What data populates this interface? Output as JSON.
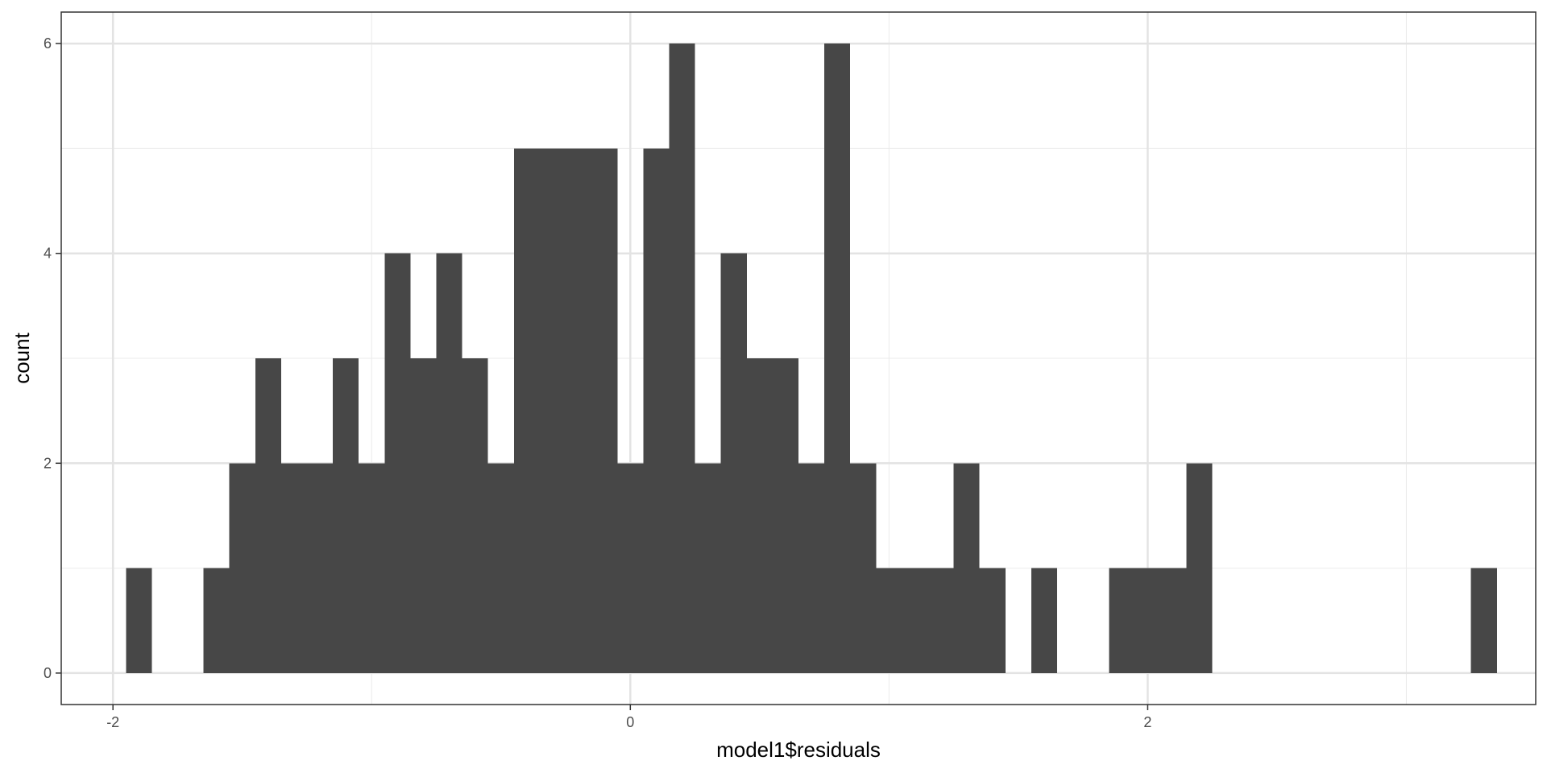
{
  "chart_data": {
    "type": "bar",
    "subtype": "histogram",
    "title": "",
    "xlabel": "model1$residuals",
    "ylabel": "count",
    "xlim": [
      -2.2,
      3.5
    ],
    "ylim": [
      -0.3,
      6.3
    ],
    "x_ticks": [
      -2,
      0,
      2
    ],
    "x_tick_labels": [
      "-2",
      "0",
      "2"
    ],
    "y_ticks": [
      0,
      2,
      4,
      6
    ],
    "y_tick_labels": [
      "0",
      "2",
      "4",
      "6"
    ],
    "grid": true,
    "legend": "none",
    "bar_color": "#474747",
    "bins": [
      {
        "x0": -1.95,
        "x1": -1.85,
        "count": 1
      },
      {
        "x0": -1.65,
        "x1": -1.55,
        "count": 1
      },
      {
        "x0": -1.55,
        "x1": -1.45,
        "count": 2
      },
      {
        "x0": -1.45,
        "x1": -1.35,
        "count": 3
      },
      {
        "x0": -1.35,
        "x1": -1.25,
        "count": 2
      },
      {
        "x0": -1.25,
        "x1": -1.15,
        "count": 2
      },
      {
        "x0": -1.15,
        "x1": -1.05,
        "count": 3
      },
      {
        "x0": -1.05,
        "x1": -0.95,
        "count": 2
      },
      {
        "x0": -0.95,
        "x1": -0.85,
        "count": 4
      },
      {
        "x0": -0.85,
        "x1": -0.75,
        "count": 3
      },
      {
        "x0": -0.75,
        "x1": -0.65,
        "count": 4
      },
      {
        "x0": -0.65,
        "x1": -0.55,
        "count": 3
      },
      {
        "x0": -0.55,
        "x1": -0.45,
        "count": 2
      },
      {
        "x0": -0.45,
        "x1": -0.35,
        "count": 5
      },
      {
        "x0": -0.35,
        "x1": -0.25,
        "count": 5
      },
      {
        "x0": -0.25,
        "x1": -0.15,
        "count": 5
      },
      {
        "x0": -0.15,
        "x1": -0.05,
        "count": 5
      },
      {
        "x0": -0.05,
        "x1": 0.05,
        "count": 2
      },
      {
        "x0": 0.05,
        "x1": 0.15,
        "count": 5
      },
      {
        "x0": 0.15,
        "x1": 0.25,
        "count": 6
      },
      {
        "x0": 0.25,
        "x1": 0.35,
        "count": 2
      },
      {
        "x0": 0.35,
        "x1": 0.45,
        "count": 4
      },
      {
        "x0": 0.45,
        "x1": 0.55,
        "count": 3
      },
      {
        "x0": 0.55,
        "x1": 0.65,
        "count": 3
      },
      {
        "x0": 0.65,
        "x1": 0.75,
        "count": 2
      },
      {
        "x0": 0.75,
        "x1": 0.85,
        "count": 6
      },
      {
        "x0": 0.85,
        "x1": 0.95,
        "count": 2
      },
      {
        "x0": 0.95,
        "x1": 1.05,
        "count": 1
      },
      {
        "x0": 1.05,
        "x1": 1.15,
        "count": 1
      },
      {
        "x0": 1.15,
        "x1": 1.25,
        "count": 1
      },
      {
        "x0": 1.25,
        "x1": 1.35,
        "count": 2
      },
      {
        "x0": 1.35,
        "x1": 1.45,
        "count": 1
      },
      {
        "x0": 1.55,
        "x1": 1.65,
        "count": 1
      },
      {
        "x0": 1.85,
        "x1": 1.95,
        "count": 1
      },
      {
        "x0": 1.95,
        "x1": 2.05,
        "count": 1
      },
      {
        "x0": 2.05,
        "x1": 2.15,
        "count": 1
      },
      {
        "x0": 2.15,
        "x1": 2.25,
        "count": 2
      },
      {
        "x0": 3.25,
        "x1": 3.35,
        "count": 1
      }
    ]
  }
}
